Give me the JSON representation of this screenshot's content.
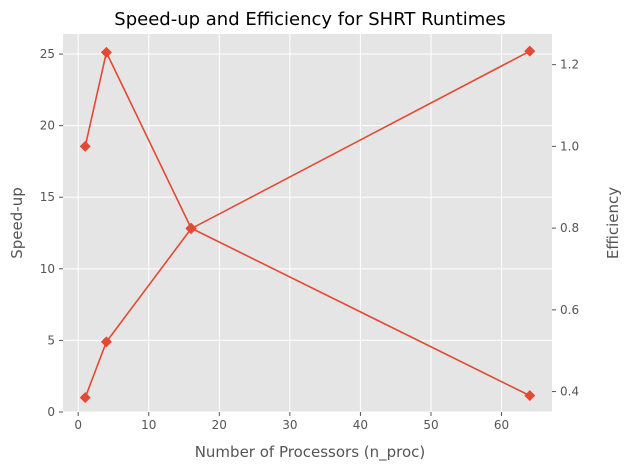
{
  "chart_data": {
    "type": "line",
    "title": "Speed-up and Efficiency for SHRT Runtimes",
    "xlabel": "Number of Processors (n_proc)",
    "ylabel": "Speed-up",
    "y2label": "Efficiency",
    "x": [
      1,
      4,
      16,
      64
    ],
    "xlim": [
      -2.15,
      67.15
    ],
    "ylim": [
      0,
      26.4
    ],
    "y2lim": [
      0.35,
      1.275
    ],
    "xticks": [
      0,
      10,
      20,
      30,
      40,
      50,
      60
    ],
    "yticks": [
      0,
      5,
      10,
      15,
      20,
      25
    ],
    "y2ticks": [
      0.4,
      0.6,
      0.8,
      1.0,
      1.2
    ],
    "xtick_labels": [
      "0",
      "10",
      "20",
      "30",
      "40",
      "50",
      "60"
    ],
    "ytick_labels": [
      "0",
      "5",
      "10",
      "15",
      "20",
      "25"
    ],
    "y2tick_labels": [
      "0.4",
      "0.6",
      "0.8",
      "1.0",
      "1.2"
    ],
    "series": [
      {
        "axis": "left",
        "values": [
          1.0,
          4.9,
          12.8,
          25.2
        ]
      },
      {
        "axis": "right",
        "values": [
          1.0,
          1.23,
          0.8,
          0.39
        ]
      }
    ],
    "grid": true,
    "style": "ggplot",
    "colors": {
      "line": "#E24A33",
      "background": "#E5E5E5",
      "grid": "#FFFFFF",
      "text": "#555555"
    }
  }
}
